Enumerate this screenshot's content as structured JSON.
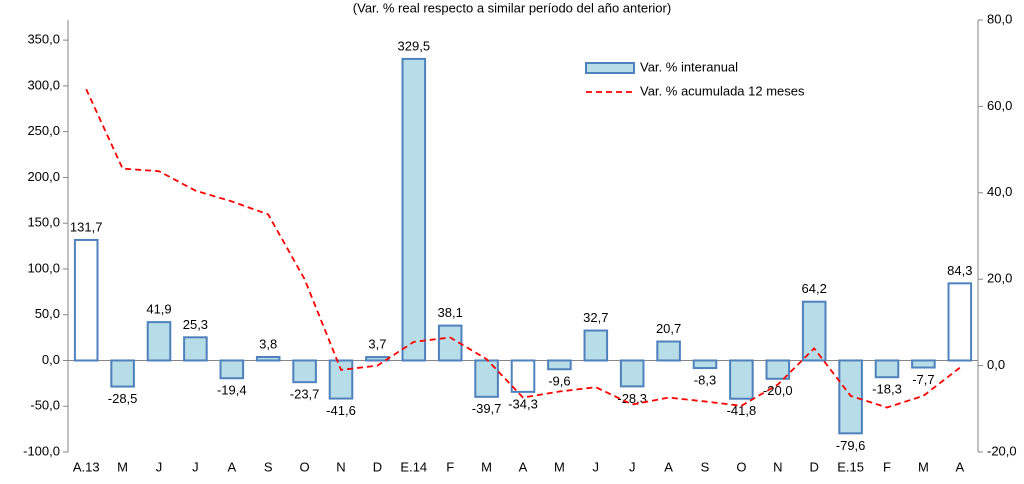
{
  "chart_data": {
    "type": "bar-line",
    "subtitle": "(Var. % real respecto a similar período del año anterior)",
    "categories": [
      "A.13",
      "M",
      "J",
      "J",
      "A",
      "S",
      "O",
      "N",
      "D",
      "E.14",
      "F",
      "M",
      "A",
      "M",
      "J",
      "J",
      "A",
      "S",
      "O",
      "N",
      "D",
      "E.15",
      "F",
      "M",
      "A"
    ],
    "series": [
      {
        "name": "Var. % interanual",
        "type": "bar",
        "color": "#4f81bd",
        "values": [
          131.7,
          -28.5,
          41.9,
          25.3,
          -19.4,
          3.8,
          -23.7,
          -41.6,
          3.7,
          329.5,
          38.1,
          -39.7,
          -34.3,
          -9.6,
          32.7,
          -28.3,
          20.7,
          -8.3,
          -41.8,
          -20.0,
          64.2,
          -79.6,
          -18.3,
          -7.7,
          84.3
        ],
        "value_labels": [
          "131,7",
          "-28,5",
          "41,9",
          "25,3",
          "-19,4",
          "3,8",
          "-23,7",
          "-41,6",
          "3,7",
          "329,5",
          "38,1",
          "-39,7",
          "-34,3",
          "-9,6",
          "32,7",
          "-28,3",
          "20,7",
          "-8,3",
          "-41,8",
          "-20,0",
          "64,2",
          "-79,6",
          "-18,3",
          "-7,7",
          "84,3"
        ],
        "fills": [
          "#ffffff",
          "#b7dde8",
          "#b7dde8",
          "#b7dde8",
          "#b7dde8",
          "#b7dde8",
          "#b7dde8",
          "#b7dde8",
          "#b7dde8",
          "#b7dde8",
          "#b7dde8",
          "#b7dde8",
          "#ffffff",
          "#b7dde8",
          "#b7dde8",
          "#b7dde8",
          "#b7dde8",
          "#b7dde8",
          "#b7dde8",
          "#b7dde8",
          "#b7dde8",
          "#b7dde8",
          "#b7dde8",
          "#b7dde8",
          "#ffffff"
        ]
      },
      {
        "name": "Var. % acumulada 12 meses",
        "type": "line",
        "axis": "y2",
        "color": "#ff0000",
        "values": [
          64,
          45.6,
          45,
          40.5,
          38,
          35,
          20,
          -1,
          0,
          5.5,
          6.5,
          1.5,
          -7.4,
          -6,
          -5,
          -9,
          -7.4,
          -8.3,
          -9.3,
          -4.4,
          4,
          -7,
          -9.7,
          -7,
          -0.5
        ]
      }
    ],
    "ylim": [
      -100,
      372
    ],
    "yticks": [
      {
        "value": -100,
        "label": "-100,0"
      },
      {
        "value": -50,
        "label": "-50,0"
      },
      {
        "value": 0,
        "label": "0,0"
      },
      {
        "value": 50,
        "label": "50,0"
      },
      {
        "value": 100,
        "label": "100,0"
      },
      {
        "value": 150,
        "label": "150,0"
      },
      {
        "value": 200,
        "label": "200,0"
      },
      {
        "value": 250,
        "label": "250,0"
      },
      {
        "value": 300,
        "label": "300,0"
      },
      {
        "value": 350,
        "label": "350,0"
      }
    ],
    "y2lim": [
      -20,
      80
    ],
    "y2ticks": [
      {
        "value": -20,
        "label": "-20,0"
      },
      {
        "value": 0,
        "label": "0,0"
      },
      {
        "value": 20,
        "label": "20,0"
      },
      {
        "value": 40,
        "label": "40,0"
      },
      {
        "value": 60,
        "label": "60,0"
      },
      {
        "value": 80,
        "label": "80,0"
      }
    ],
    "grid": false
  }
}
